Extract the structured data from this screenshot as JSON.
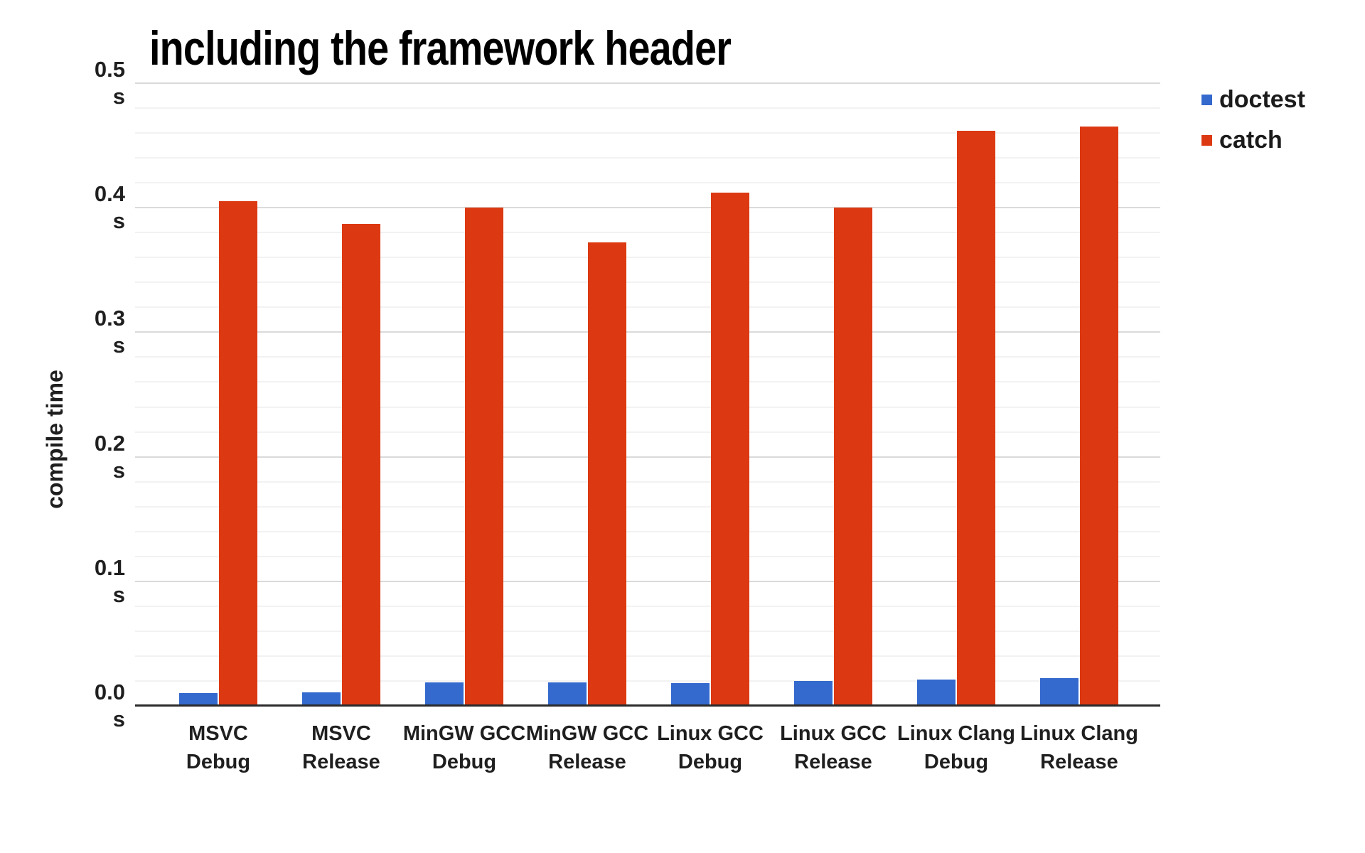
{
  "chart_data": {
    "type": "bar",
    "title": "including the framework header",
    "ylabel": "compile time",
    "ytick_unit": "s",
    "ylim": [
      0,
      0.5
    ],
    "yticks": [
      "0.0",
      "0.1",
      "0.2",
      "0.3",
      "0.4",
      "0.5"
    ],
    "minor_gridline_step": 0.02,
    "grid": true,
    "legend_position": "top-right",
    "categories": [
      "MSVC\nDebug",
      "MSVC\nRelease",
      "MinGW GCC\nDebug",
      "MinGW GCC\nRelease",
      "Linux GCC\nDebug",
      "Linux GCC\nRelease",
      "Linux Clang\nDebug",
      "Linux Clang\nRelease"
    ],
    "series": [
      {
        "name": "doctest",
        "color": "#3469CD",
        "values": [
          0.01,
          0.011,
          0.019,
          0.019,
          0.018,
          0.02,
          0.021,
          0.022
        ]
      },
      {
        "name": "catch",
        "color": "#DC3912",
        "values": [
          0.405,
          0.387,
          0.4,
          0.372,
          0.412,
          0.4,
          0.462,
          0.465
        ]
      }
    ],
    "colors": {
      "doctest_blue": "#3469CD",
      "catch_red": "#DC3912",
      "baseline": "#2b2b2b",
      "major_gridline": "#dadada",
      "minor_gridline": "#f2f2f2",
      "text": "#1f1f1f",
      "title": "#000000"
    }
  }
}
